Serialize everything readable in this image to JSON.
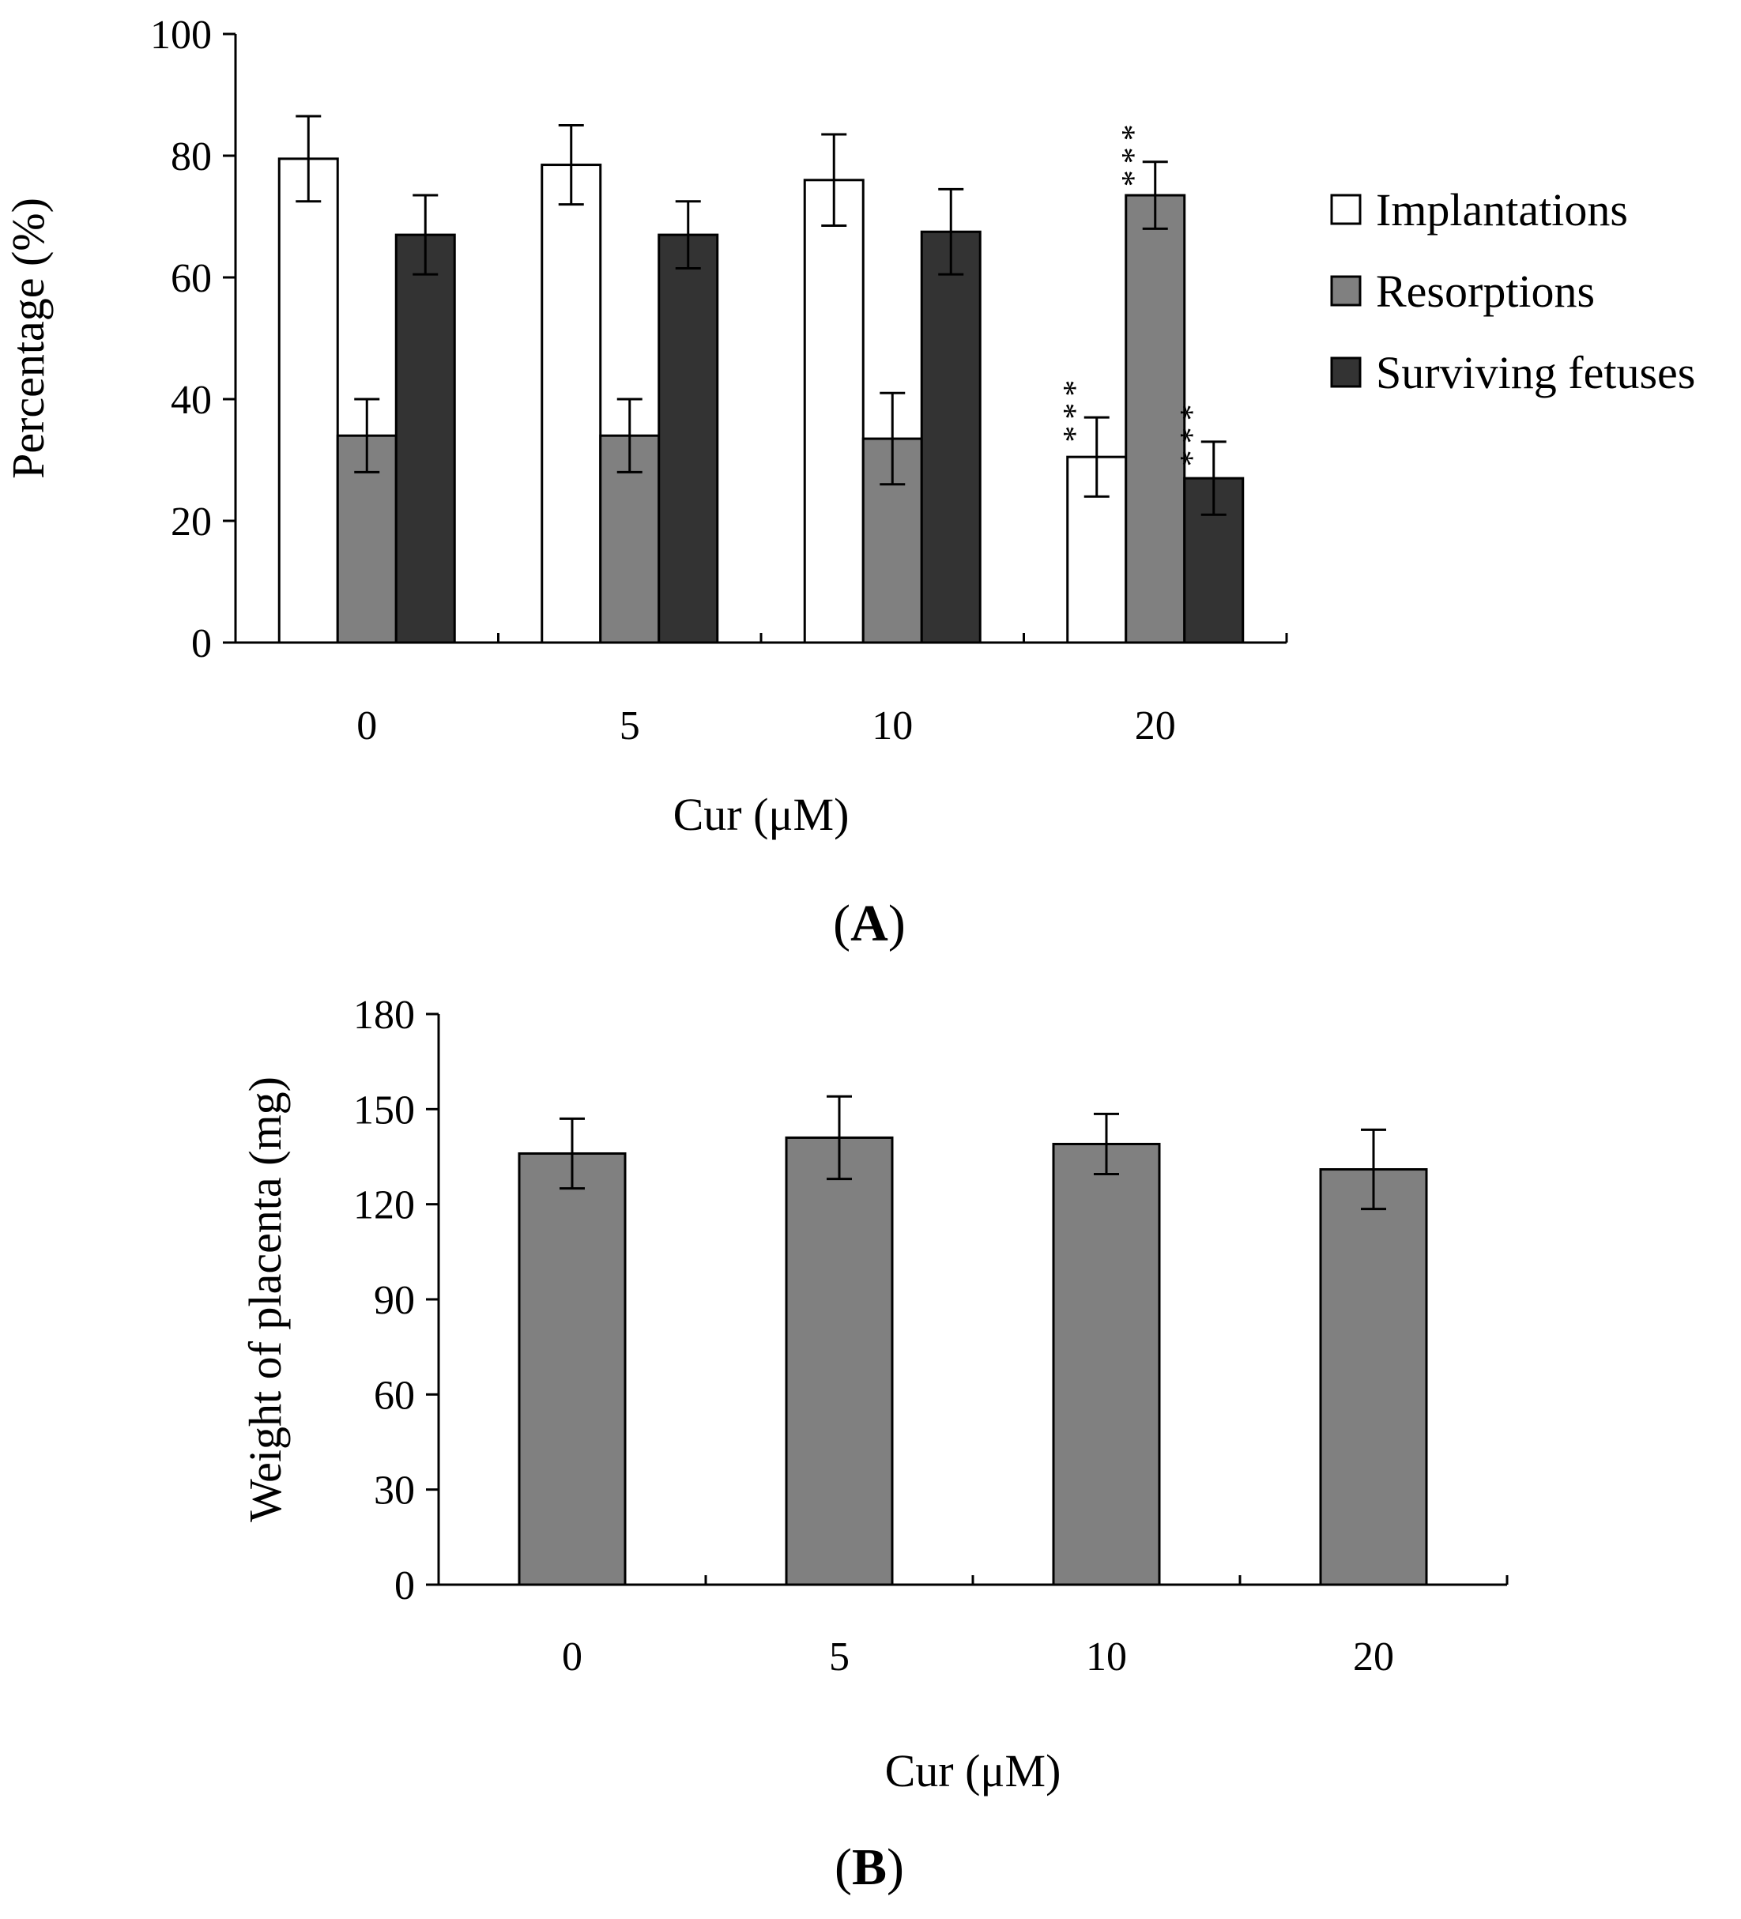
{
  "chart_data": [
    {
      "type": "bar",
      "panel_label": "A",
      "categories": [
        "0",
        "5",
        "10",
        "20"
      ],
      "xlabel": "Cur (μM)",
      "ylabel": "Percentage (%)",
      "ylim": [
        0,
        100
      ],
      "yticks": [
        0,
        20,
        40,
        60,
        80,
        100
      ],
      "legend_position": "right",
      "series": [
        {
          "name": "Implantations",
          "color": "#ffffff",
          "values": [
            79.5,
            78.5,
            76,
            30.5
          ],
          "errors": [
            7,
            6.5,
            7.5,
            6.5
          ],
          "annotations": [
            "",
            "",
            "",
            "***"
          ]
        },
        {
          "name": "Resorptions",
          "color": "#808080",
          "values": [
            34,
            34,
            33.5,
            73.5
          ],
          "errors": [
            6,
            6,
            7.5,
            5.5
          ],
          "annotations": [
            "",
            "",
            "",
            "***"
          ]
        },
        {
          "name": "Surviving fetuses",
          "color": "#333333",
          "values": [
            67,
            67,
            67.5,
            27
          ],
          "errors": [
            6.5,
            5.5,
            7,
            6
          ],
          "annotations": [
            "",
            "",
            "",
            "***"
          ]
        }
      ]
    },
    {
      "type": "bar",
      "panel_label": "B",
      "categories": [
        "0",
        "5",
        "10",
        "20"
      ],
      "xlabel": "Cur (μM)",
      "ylabel": "Weight of placenta (mg)",
      "ylim": [
        0,
        180
      ],
      "yticks": [
        0,
        30,
        60,
        90,
        120,
        150,
        180
      ],
      "series": [
        {
          "name": "Weight of placenta",
          "color": "#808080",
          "values": [
            136,
            141,
            139,
            131
          ],
          "errors": [
            11,
            13,
            9.5,
            12.5
          ]
        }
      ]
    }
  ]
}
